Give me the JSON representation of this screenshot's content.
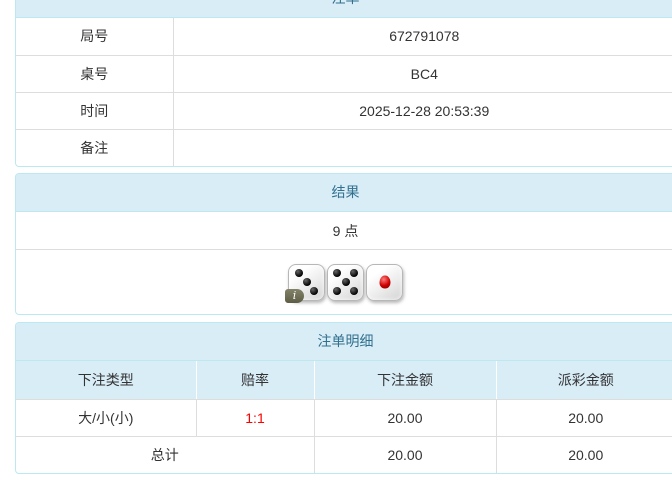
{
  "theme": {
    "accent_blue": "#31708f",
    "heading_bg": "#d9edf7",
    "panel_border": "#bce8f1",
    "odds_red": "#ff0000"
  },
  "bet_info": {
    "title": "注单",
    "rows": [
      {
        "label": "局号",
        "value": "672791078"
      },
      {
        "label": "桌号",
        "value": "BC4"
      },
      {
        "label": "时间",
        "value": "2025-12-28 20:53:39"
      },
      {
        "label": "备注",
        "value": ""
      }
    ]
  },
  "result": {
    "title": "结果",
    "points": "9 点",
    "dice": [
      {
        "value": 3,
        "pip_color": "black"
      },
      {
        "value": 5,
        "pip_color": "black"
      },
      {
        "value": 1,
        "pip_color": "red"
      }
    ],
    "info_icon_label": "i"
  },
  "detail": {
    "title": "注单明细",
    "columns": [
      "下注类型",
      "赔率",
      "下注金额",
      "派彩金额"
    ],
    "rows": [
      {
        "type": "大/小(小)",
        "odds": "1:1",
        "bet_amount": "20.00",
        "payout_amount": "20.00"
      }
    ],
    "total": {
      "label": "总计",
      "bet_amount": "20.00",
      "payout_amount": "20.00"
    }
  }
}
